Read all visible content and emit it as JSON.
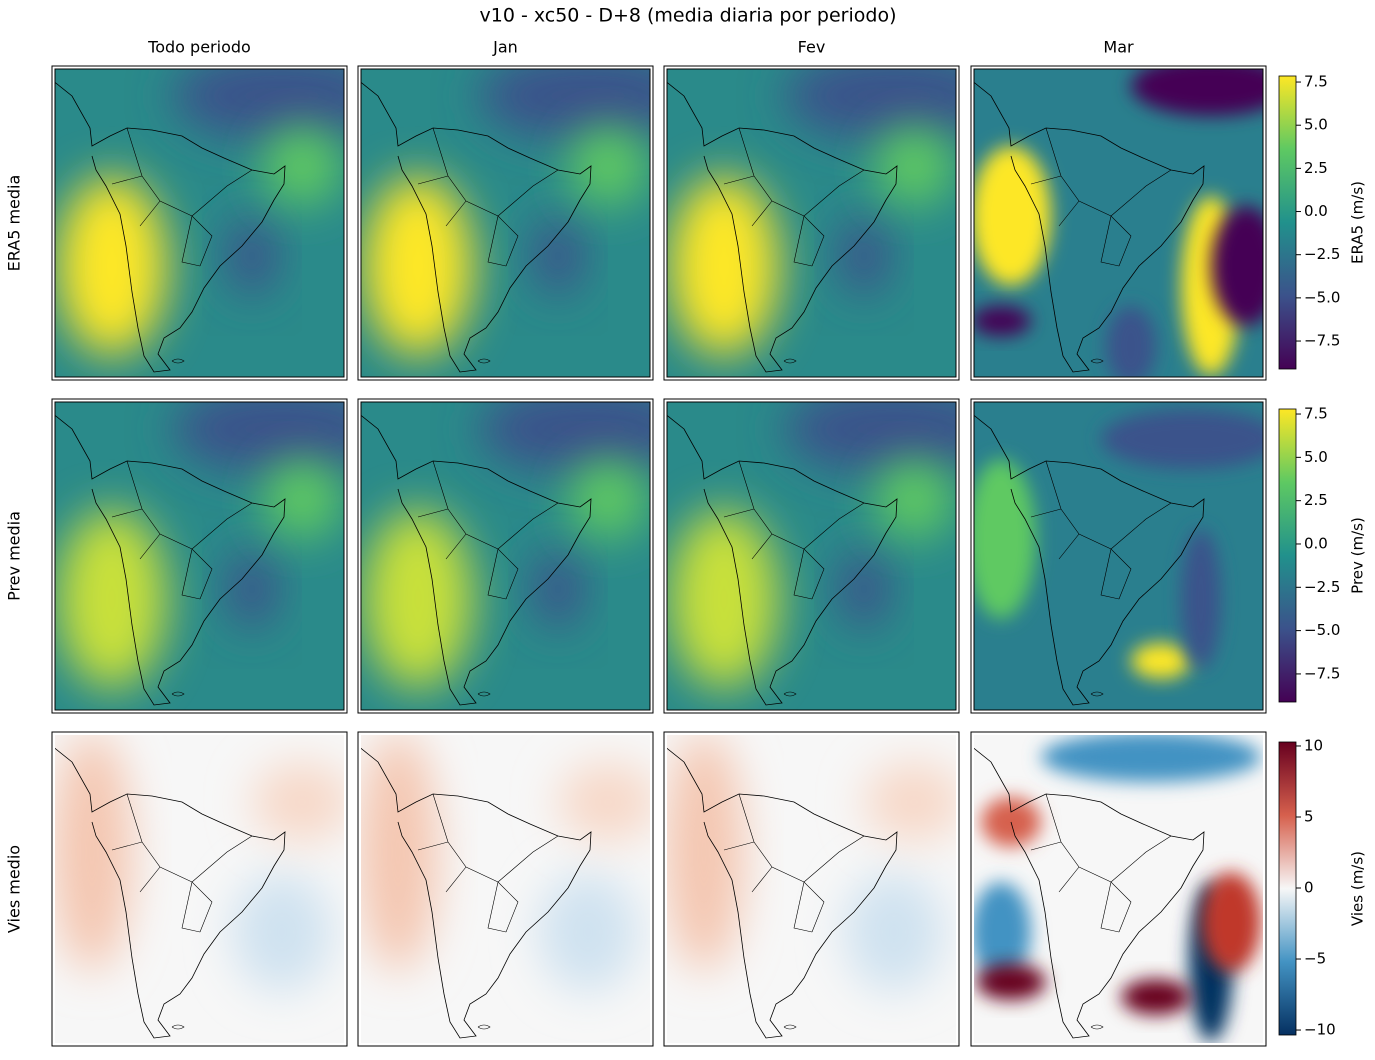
{
  "title": "v10 - xc50 - D+8 (media diaria por periodo)",
  "columns": [
    "Todo periodo",
    "Jan",
    "Fev",
    "Mar"
  ],
  "rows": [
    {
      "label": "ERA5 media",
      "colormap": "viridis",
      "colorbar": {
        "label": "ERA5 (m/s)",
        "lim": [
          -9.12,
          7.85
        ],
        "ticks": [
          {
            "value": -7.5,
            "label": "−7.5"
          },
          {
            "value": -5,
            "label": "−5.0"
          },
          {
            "value": -2.5,
            "label": "−2.5"
          },
          {
            "value": 0,
            "label": "0.0"
          },
          2.5,
          {
            "value": 5,
            "label": "5.0"
          },
          7.5
        ]
      }
    },
    {
      "label": "Prev media",
      "colormap": "viridis",
      "colorbar": {
        "label": "Prev (m/s)",
        "lim": [
          -9.12,
          7.79
        ],
        "ticks": [
          {
            "value": -7.5,
            "label": "−7.5"
          },
          {
            "value": -5,
            "label": "−5.0"
          },
          {
            "value": -2.5,
            "label": "−2.5"
          },
          {
            "value": 0,
            "label": "0.0"
          },
          2.5,
          {
            "value": 5,
            "label": "5.0"
          },
          7.5
        ]
      }
    },
    {
      "label": "Vies medio",
      "colormap": "RdBu_r",
      "colorbar": {
        "label": "Vies (m/s)",
        "lim": [
          -10.35,
          10.28
        ],
        "ticks": [
          {
            "value": -10,
            "label": "−10"
          },
          {
            "value": -5,
            "label": "−5"
          },
          0,
          5,
          10
        ]
      }
    }
  ]
}
